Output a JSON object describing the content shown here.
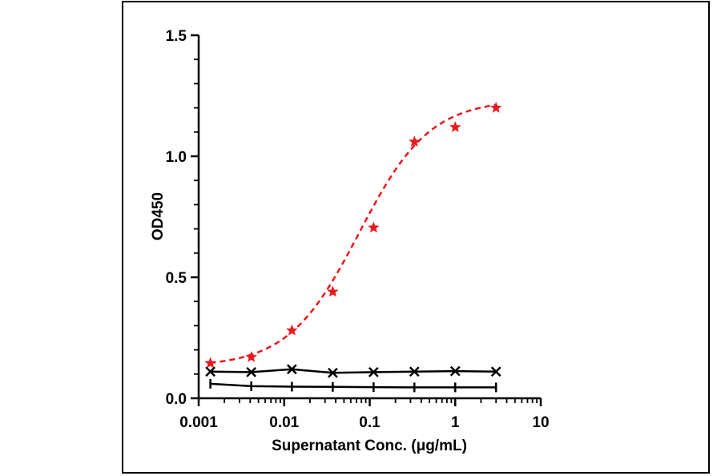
{
  "chart_data": {
    "type": "line",
    "title": "",
    "xlabel": "Supernatant Conc. (μg/mL)",
    "ylabel": "OD450",
    "xscale": "log",
    "xlim": [
      0.001,
      10
    ],
    "ylim": [
      0,
      1.5
    ],
    "x_ticks": [
      0.001,
      0.01,
      0.1,
      1,
      10
    ],
    "x_tick_labels": [
      "0.001",
      "0.01",
      "0.1",
      "1",
      "10"
    ],
    "y_ticks": [
      0,
      0.5,
      1.0,
      1.5
    ],
    "y_tick_labels": [
      "0.0",
      "0.5",
      "1.0",
      "1.5"
    ],
    "grid": false,
    "legend": "none",
    "series": [
      {
        "marker": "star",
        "color": "#e8191c",
        "line": "dashed sigmoid fit",
        "x": [
          0.00137,
          0.00412,
          0.0123,
          0.037,
          0.111,
          0.333,
          1,
          3
        ],
        "y": [
          0.145,
          0.17,
          0.28,
          0.44,
          0.705,
          1.06,
          1.12,
          1.2
        ]
      },
      {
        "marker": "x",
        "color": "#000000",
        "line": "solid",
        "x": [
          0.00137,
          0.00412,
          0.0123,
          0.037,
          0.111,
          0.333,
          1,
          3
        ],
        "y": [
          0.11,
          0.108,
          0.12,
          0.105,
          0.108,
          0.11,
          0.112,
          0.11
        ]
      },
      {
        "marker": "tick",
        "color": "#000000",
        "line": "solid",
        "x": [
          0.00137,
          0.00412,
          0.0123,
          0.037,
          0.111,
          0.333,
          1,
          3
        ],
        "y": [
          0.06,
          0.05,
          0.048,
          0.047,
          0.046,
          0.045,
          0.045,
          0.045
        ]
      }
    ]
  }
}
